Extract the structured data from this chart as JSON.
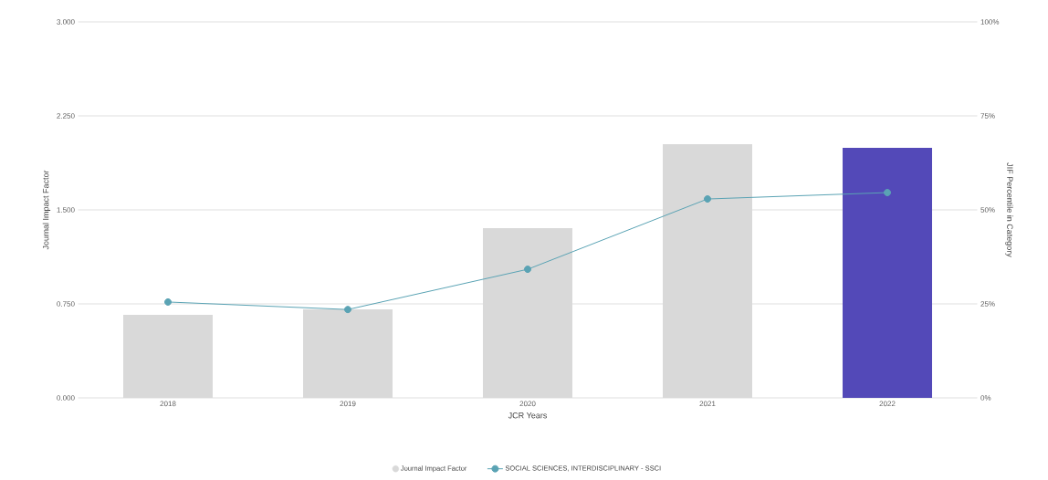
{
  "chart_data": {
    "type": "bar",
    "xlabel": "JCR Years",
    "ylabel": "Journal Impact Factor",
    "y2label": "JIF Percentile in Category",
    "categories": [
      "2018",
      "2019",
      "2020",
      "2021",
      "2022"
    ],
    "series": [
      {
        "name": "Journal Impact Factor",
        "color": "#d9d9d9",
        "colors": [
          "#d9d9d9",
          "#d9d9d9",
          "#d9d9d9",
          "#d9d9d9",
          "#5349b8"
        ],
        "values": [
          0.663,
          0.706,
          1.355,
          2.025,
          1.996
        ]
      },
      {
        "name": "SOCIAL SCIENCES, INTERDISCIPLINARY - SSCI",
        "type": "line",
        "axis": "y2",
        "color": "#5aa3b4",
        "marker": "circle",
        "values": [
          25.5,
          23.5,
          34.2,
          52.9,
          54.6
        ]
      }
    ],
    "ylim": [
      0,
      3
    ],
    "yticks": [
      {
        "value": 0,
        "label": "0.000"
      },
      {
        "value": 0.75,
        "label": "0.750"
      },
      {
        "value": 1.5,
        "label": "1.500"
      },
      {
        "value": 2.25,
        "label": "2.250"
      },
      {
        "value": 3,
        "label": "3.000"
      }
    ],
    "y2lim": [
      0,
      100
    ],
    "y2ticks": [
      {
        "value": 0,
        "label": "0%"
      },
      {
        "value": 25,
        "label": "25%"
      },
      {
        "value": 50,
        "label": "50%"
      },
      {
        "value": 75,
        "label": "75%"
      },
      {
        "value": 100,
        "label": "100%"
      }
    ],
    "grid": "y",
    "legend": "bottom"
  }
}
